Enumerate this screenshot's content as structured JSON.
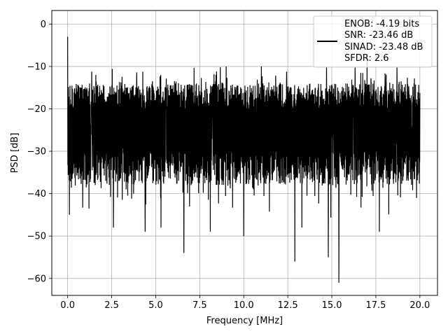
{
  "chart_data": {
    "type": "line",
    "title": "",
    "xlabel": "Frequency [MHz]",
    "ylabel": "PSD [dB]",
    "xlim": [
      -0.9,
      21.0
    ],
    "ylim": [
      -64,
      3.2
    ],
    "x_ticks": [
      0.0,
      2.5,
      5.0,
      7.5,
      10.0,
      12.5,
      15.0,
      17.5,
      20.0
    ],
    "x_tick_labels": [
      "0.0",
      "2.5",
      "5.0",
      "7.5",
      "10.0",
      "12.5",
      "15.0",
      "17.5",
      "20.0"
    ],
    "y_ticks": [
      0,
      -10,
      -20,
      -30,
      -40,
      -50,
      -60
    ],
    "y_tick_labels": [
      "0",
      "−10",
      "−20",
      "−30",
      "−40",
      "−50",
      "−60"
    ],
    "grid": true,
    "legend_position": "top-right",
    "legend": [
      "ENOB: -4.19 bits",
      "SNR: -23.46 dB",
      "SINAD: -23.48 dB",
      "SFDR: 2.6"
    ],
    "series": [
      {
        "color": "#000000",
        "x_range": [
          0,
          20
        ],
        "description": "dense noise spectrum",
        "band_upper": -14,
        "band_lower": -34,
        "notable_peaks": [
          {
            "x": 0.0,
            "y": -3
          },
          {
            "x": 1.6,
            "y": -12
          },
          {
            "x": 6.6,
            "y": -11
          },
          {
            "x": 9.0,
            "y": -10
          },
          {
            "x": 11.0,
            "y": -10
          },
          {
            "x": 14.7,
            "y": -10
          },
          {
            "x": 17.0,
            "y": -7
          },
          {
            "x": 18.7,
            "y": -10
          }
        ],
        "notable_dips": [
          {
            "x": 0.1,
            "y": -45
          },
          {
            "x": 2.6,
            "y": -48
          },
          {
            "x": 4.4,
            "y": -49
          },
          {
            "x": 5.3,
            "y": -48
          },
          {
            "x": 6.6,
            "y": -54
          },
          {
            "x": 8.1,
            "y": -49
          },
          {
            "x": 10.0,
            "y": -50
          },
          {
            "x": 12.9,
            "y": -56
          },
          {
            "x": 13.3,
            "y": -48
          },
          {
            "x": 14.8,
            "y": -55
          },
          {
            "x": 15.4,
            "y": -61
          },
          {
            "x": 17.7,
            "y": -49
          }
        ]
      }
    ]
  }
}
